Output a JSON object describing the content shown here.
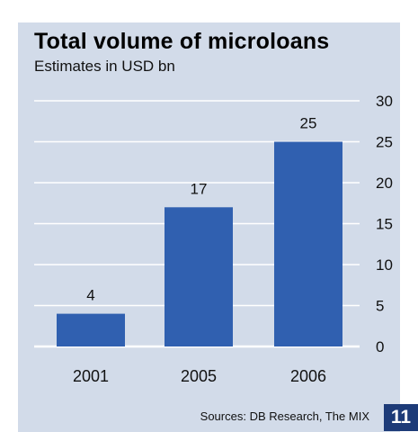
{
  "figure_number": "11",
  "source_text": "Sources: DB Research, The MIX",
  "colors": {
    "panel_background": "#d2dbe9",
    "bar": "#3060b0",
    "gridline": "#ffffff",
    "badge": "#1d3b78"
  },
  "chart_data": {
    "type": "bar",
    "title": "Total volume of microloans",
    "subtitle": "Estimates in USD bn",
    "xlabel": "",
    "ylabel": "",
    "categories": [
      "2001",
      "2005",
      "2006"
    ],
    "values": [
      4,
      17,
      25
    ],
    "data_labels": [
      "4",
      "17",
      "25"
    ],
    "ylim": [
      0,
      30
    ],
    "yticks": [
      0,
      5,
      10,
      15,
      20,
      25,
      30
    ],
    "y_axis_side": "right",
    "grid": true,
    "legend": "none"
  }
}
